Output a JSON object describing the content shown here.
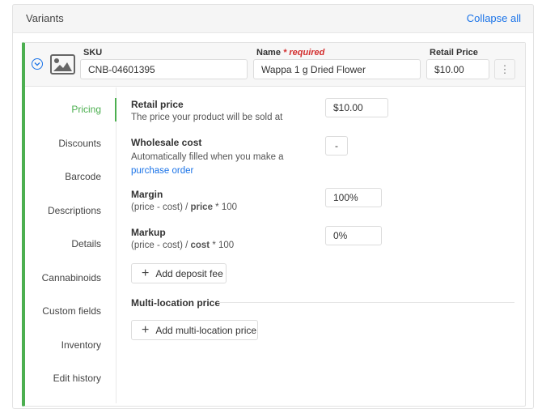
{
  "header": {
    "title": "Variants",
    "collapse_all": "Collapse all"
  },
  "variant": {
    "sku_label": "SKU",
    "sku_value": "CNB-04601395",
    "name_label": "Name",
    "name_required": "* required",
    "name_value": "Wappa 1 g Dried Flower",
    "retail_label": "Retail Price",
    "retail_value": "$10.00",
    "more_icon": "vertical-ellipsis",
    "expand_icon": "chevron-down-circle",
    "image_icon": "image-placeholder"
  },
  "nav": {
    "items": [
      {
        "label": "Pricing",
        "active": true
      },
      {
        "label": "Discounts"
      },
      {
        "label": "Barcode"
      },
      {
        "label": "Descriptions"
      },
      {
        "label": "Details"
      },
      {
        "label": "Cannabinoids"
      },
      {
        "label": "Custom fields"
      },
      {
        "label": "Inventory"
      },
      {
        "label": "Edit history"
      }
    ]
  },
  "pricing": {
    "retail": {
      "title": "Retail price",
      "desc": "The price your product will be sold at",
      "value": "$10.00"
    },
    "wholesale": {
      "title": "Wholesale cost",
      "desc": "Automatically filled when you make a ",
      "link1": "purchase",
      "link2": "order",
      "value": "-"
    },
    "margin": {
      "title": "Margin",
      "pre": "(price - cost) / ",
      "bold": "price",
      "post": " * 100",
      "value": "100%"
    },
    "markup": {
      "title": "Markup",
      "pre": "(price - cost) / ",
      "bold": "cost",
      "post": " * 100",
      "value": "0%"
    },
    "add_deposit": "Add deposit fee",
    "multi_title": "Multi-location price",
    "add_multi": "Add multi-location price"
  },
  "colors": {
    "accent": "#4caf50",
    "link": "#1a73e8",
    "required": "#d32f2f"
  }
}
